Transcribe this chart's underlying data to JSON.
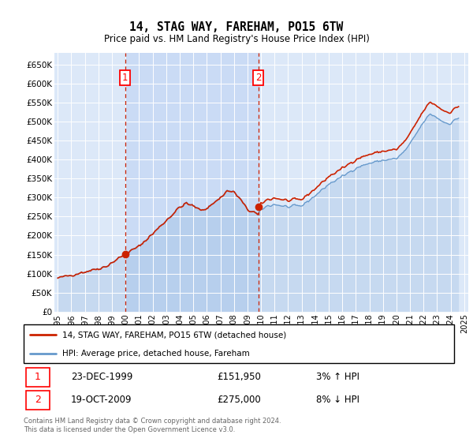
{
  "title": "14, STAG WAY, FAREHAM, PO15 6TW",
  "subtitle": "Price paid vs. HM Land Registry's House Price Index (HPI)",
  "background_color": "#ffffff",
  "plot_bg_color": "#dce8f8",
  "shade_color": "#c8daf5",
  "grid_color": "#ffffff",
  "hpi_color": "#6699cc",
  "price_color": "#cc2200",
  "legend_label1": "14, STAG WAY, FAREHAM, PO15 6TW (detached house)",
  "legend_label2": "HPI: Average price, detached house, Fareham",
  "footer": "Contains HM Land Registry data © Crown copyright and database right 2024.\nThis data is licensed under the Open Government Licence v3.0.",
  "ylim": [
    0,
    680000
  ],
  "yticks": [
    0,
    50000,
    100000,
    150000,
    200000,
    250000,
    300000,
    350000,
    400000,
    450000,
    500000,
    550000,
    600000,
    650000
  ],
  "ytick_labels": [
    "£0",
    "£50K",
    "£100K",
    "£150K",
    "£200K",
    "£250K",
    "£300K",
    "£350K",
    "£400K",
    "£450K",
    "£500K",
    "£550K",
    "£600K",
    "£650K"
  ],
  "xlim_start": 1994.75,
  "xlim_end": 2025.3,
  "xtick_years": [
    1995,
    1996,
    1997,
    1998,
    1999,
    2000,
    2001,
    2002,
    2003,
    2004,
    2005,
    2006,
    2007,
    2008,
    2009,
    2010,
    2011,
    2012,
    2013,
    2014,
    2015,
    2016,
    2017,
    2018,
    2019,
    2020,
    2021,
    2022,
    2023,
    2024,
    2025
  ],
  "sale1_x": 1999.97,
  "sale1_y": 151950,
  "sale2_x": 2009.8,
  "sale2_y": 275000,
  "sale1_date": "23-DEC-1999",
  "sale1_price": 151950,
  "sale1_hpi_pct": "3% ↑ HPI",
  "sale2_date": "19-OCT-2009",
  "sale2_price": 275000,
  "sale2_hpi_pct": "8% ↓ HPI"
}
